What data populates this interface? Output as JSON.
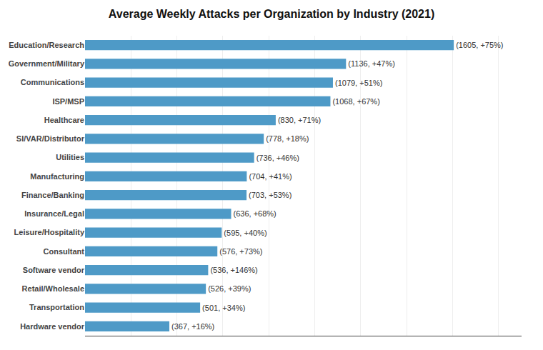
{
  "chart_data": {
    "type": "bar",
    "orientation": "horizontal",
    "title": "Average Weekly Attacks per Organization by Industry (2021)",
    "categories": [
      "Hardware vendor",
      "Transportation",
      "Retail/Wholesale",
      "Software vendor",
      "Consultant",
      "Leisure/Hospitality",
      "Insurance/Legal",
      "Finance/Banking",
      "Manufacturing",
      "Utilities",
      "SI/VAR/Distributor",
      "Healthcare",
      "ISP/MSP",
      "Communications",
      "Government/Military",
      "Education/Research"
    ],
    "values": [
      367,
      501,
      526,
      536,
      576,
      595,
      636,
      703,
      704,
      736,
      778,
      830,
      1068,
      1079,
      1136,
      1605
    ],
    "value_labels": [
      "(367, +16%)",
      "(501, +34%)",
      "(526, +39%)",
      "(536, +146%)",
      "(576, +73%)",
      "(595, +40%)",
      "(636, +68%)",
      "(703, +53%)",
      "(704, +41%)",
      "(736, +46%)",
      "(778, +18%)",
      "(830, +71%)",
      "(1068, +67%)",
      "(1079, +51%)",
      "(1136, +47%)",
      "(1605, +75%)"
    ],
    "data_labels": true,
    "color": "#4e9ac7",
    "xlim": [
      0,
      1900
    ],
    "xticks": [
      0,
      200,
      400,
      600,
      800,
      1000,
      1200,
      1400,
      1600,
      1800
    ],
    "grid": true,
    "tick_labels": "y"
  }
}
